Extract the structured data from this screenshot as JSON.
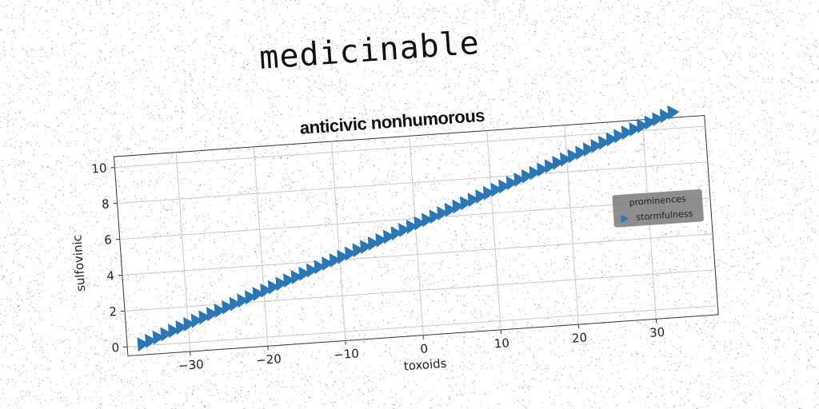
{
  "header": {
    "title": "medicinable"
  },
  "chart_data": {
    "type": "scatter",
    "subtitle": "anticivic nonhumorous",
    "xlabel": "toxoids",
    "ylabel": "sulfovinic",
    "xlim": [
      -38,
      38
    ],
    "ylim": [
      -0.5,
      10.6
    ],
    "xticks": [
      -30,
      -20,
      -10,
      0,
      10,
      20,
      30
    ],
    "yticks": [
      0,
      2,
      4,
      6,
      8,
      10
    ],
    "grid": true,
    "legend": {
      "title": "prominences",
      "placement": "center-right",
      "entries": [
        "stormfulness"
      ]
    },
    "marker": "triangle-right",
    "color": "#2a77b4",
    "series": [
      {
        "name": "stormfulness",
        "x_start": -36,
        "x_end": 34,
        "y_start": 0.1,
        "y_end": 10.9,
        "count": 70
      }
    ]
  }
}
